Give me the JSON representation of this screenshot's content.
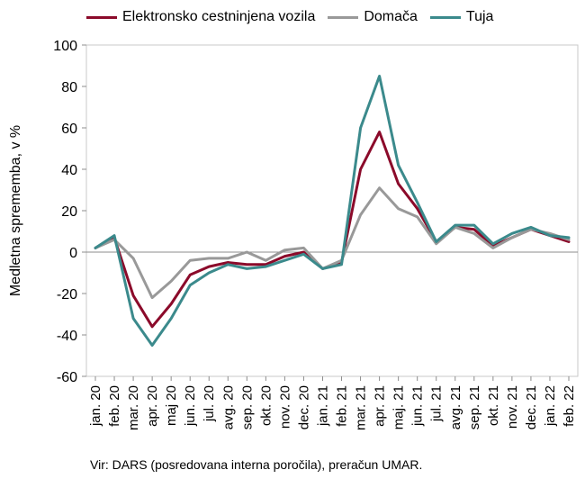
{
  "chart_data": {
    "type": "line",
    "ylabel": "Medletna sprememba, v %",
    "ylim": [
      -60,
      100
    ],
    "yticks": [
      -60,
      -40,
      -20,
      0,
      20,
      40,
      60,
      80,
      100
    ],
    "grid": false,
    "legend_position": "top",
    "categories": [
      "jan. 20",
      "feb. 20",
      "mar. 20",
      "apr. 20",
      "maj 20",
      "jun. 20",
      "jul. 20",
      "avg. 20",
      "sep. 20",
      "okt. 20",
      "nov. 20",
      "dec. 20",
      "jan. 21",
      "feb. 21",
      "mar. 21",
      "apr. 21",
      "maj. 21",
      "jun. 21",
      "jul. 21",
      "avg. 21",
      "sep. 21",
      "okt. 21",
      "nov. 21",
      "dec. 21",
      "jan. 22",
      "feb. 22"
    ],
    "series": [
      {
        "name": "Elektronsko cestninjena vozila",
        "color": "#8b0a2a",
        "values": [
          2,
          7,
          -21,
          -36,
          -25,
          -11,
          -7,
          -5,
          -6,
          -6,
          -2,
          0,
          -8,
          -5,
          40,
          58,
          33,
          21,
          5,
          12,
          11,
          3,
          7,
          11,
          8,
          5
        ]
      },
      {
        "name": "Domača",
        "color": "#999999",
        "values": [
          2,
          6,
          -3,
          -22,
          -14,
          -4,
          -3,
          -3,
          0,
          -4,
          1,
          2,
          -8,
          -4,
          18,
          31,
          21,
          17,
          4,
          12,
          9,
          2,
          7,
          11,
          9,
          6
        ]
      },
      {
        "name": "Tuja",
        "color": "#3b8a8c",
        "values": [
          2,
          8,
          -32,
          -45,
          -32,
          -16,
          -10,
          -6,
          -8,
          -7,
          -4,
          -1,
          -8,
          -6,
          60,
          85,
          42,
          24,
          5,
          13,
          13,
          4,
          9,
          12,
          8,
          7
        ]
      }
    ]
  },
  "source_note": "Vir: DARS (posredovana interna poročila), preračun UMAR."
}
